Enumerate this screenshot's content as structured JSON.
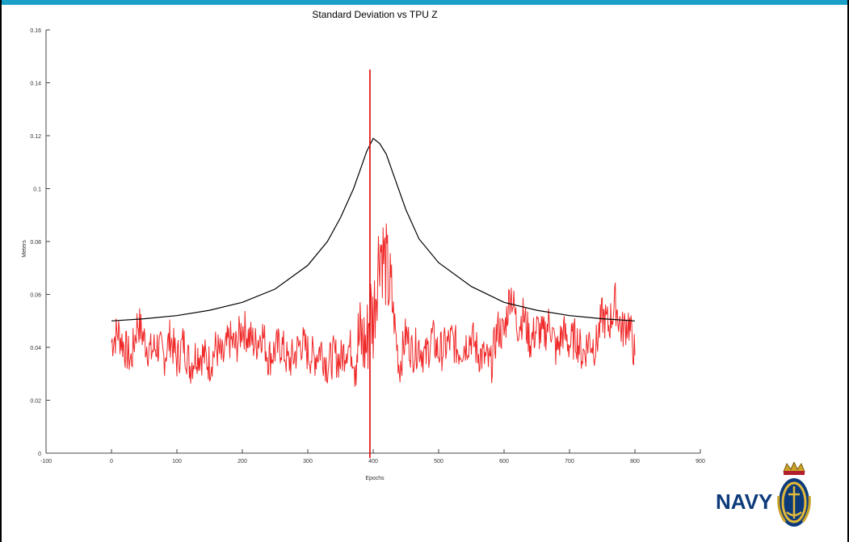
{
  "chart_data": {
    "type": "line",
    "title": "Standard Deviation vs TPU Z",
    "xlabel": "Epochs",
    "ylabel": "Meters",
    "xlim": [
      -100,
      900
    ],
    "ylim": [
      0,
      0.16
    ],
    "xticks": [
      "-100",
      "0",
      "100",
      "200",
      "300",
      "400",
      "500",
      "600",
      "700",
      "800",
      "900"
    ],
    "yticks": [
      "0",
      "0.02",
      "0.04",
      "0.06",
      "0.08",
      "0.1",
      "0.12",
      "0.14",
      "0.16"
    ],
    "grid": false,
    "series": [
      {
        "color": "#ee1111",
        "x": [
          0,
          10,
          20,
          30,
          40,
          50,
          60,
          70,
          80,
          90,
          100,
          110,
          120,
          130,
          140,
          150,
          160,
          170,
          180,
          190,
          200,
          210,
          220,
          230,
          240,
          250,
          260,
          270,
          280,
          290,
          300,
          310,
          320,
          330,
          340,
          350,
          360,
          370,
          380,
          390,
          395,
          400,
          410,
          420,
          430,
          440,
          450,
          460,
          470,
          480,
          490,
          500,
          510,
          520,
          530,
          540,
          550,
          560,
          570,
          580,
          590,
          600,
          610,
          620,
          630,
          640,
          650,
          660,
          670,
          680,
          690,
          700,
          710,
          720,
          730,
          740,
          750,
          760,
          770,
          780,
          790,
          800
        ],
        "y": [
          0.042,
          0.046,
          0.04,
          0.035,
          0.05,
          0.043,
          0.038,
          0.041,
          0.036,
          0.044,
          0.035,
          0.042,
          0.033,
          0.038,
          0.037,
          0.034,
          0.04,
          0.035,
          0.043,
          0.04,
          0.048,
          0.044,
          0.041,
          0.046,
          0.036,
          0.039,
          0.041,
          0.034,
          0.037,
          0.042,
          0.038,
          0.036,
          0.04,
          0.033,
          0.037,
          0.035,
          0.041,
          0.038,
          0.043,
          0.04,
          0.055,
          0.05,
          0.08,
          0.07,
          0.055,
          0.032,
          0.045,
          0.038,
          0.041,
          0.036,
          0.044,
          0.038,
          0.04,
          0.043,
          0.039,
          0.041,
          0.044,
          0.038,
          0.036,
          0.033,
          0.047,
          0.045,
          0.062,
          0.048,
          0.052,
          0.042,
          0.047,
          0.044,
          0.05,
          0.038,
          0.046,
          0.041,
          0.044,
          0.037,
          0.043,
          0.04,
          0.052,
          0.048,
          0.057,
          0.046,
          0.05,
          0.037
        ]
      },
      {
        "color": "#000000",
        "x": [
          0,
          50,
          100,
          150,
          200,
          250,
          300,
          330,
          350,
          370,
          380,
          390,
          400,
          410,
          420,
          430,
          450,
          470,
          500,
          550,
          600,
          650,
          700,
          750,
          800
        ],
        "y": [
          0.05,
          0.0508,
          0.052,
          0.054,
          0.057,
          0.062,
          0.071,
          0.08,
          0.089,
          0.1,
          0.107,
          0.114,
          0.119,
          0.117,
          0.113,
          0.106,
          0.092,
          0.081,
          0.072,
          0.063,
          0.057,
          0.054,
          0.052,
          0.0508,
          0.05
        ]
      }
    ],
    "spike": {
      "color": "#dd0000",
      "x": 395,
      "y_top": 0.145,
      "y_bottom": -0.002
    }
  },
  "logo": {
    "text": "NAVY"
  }
}
